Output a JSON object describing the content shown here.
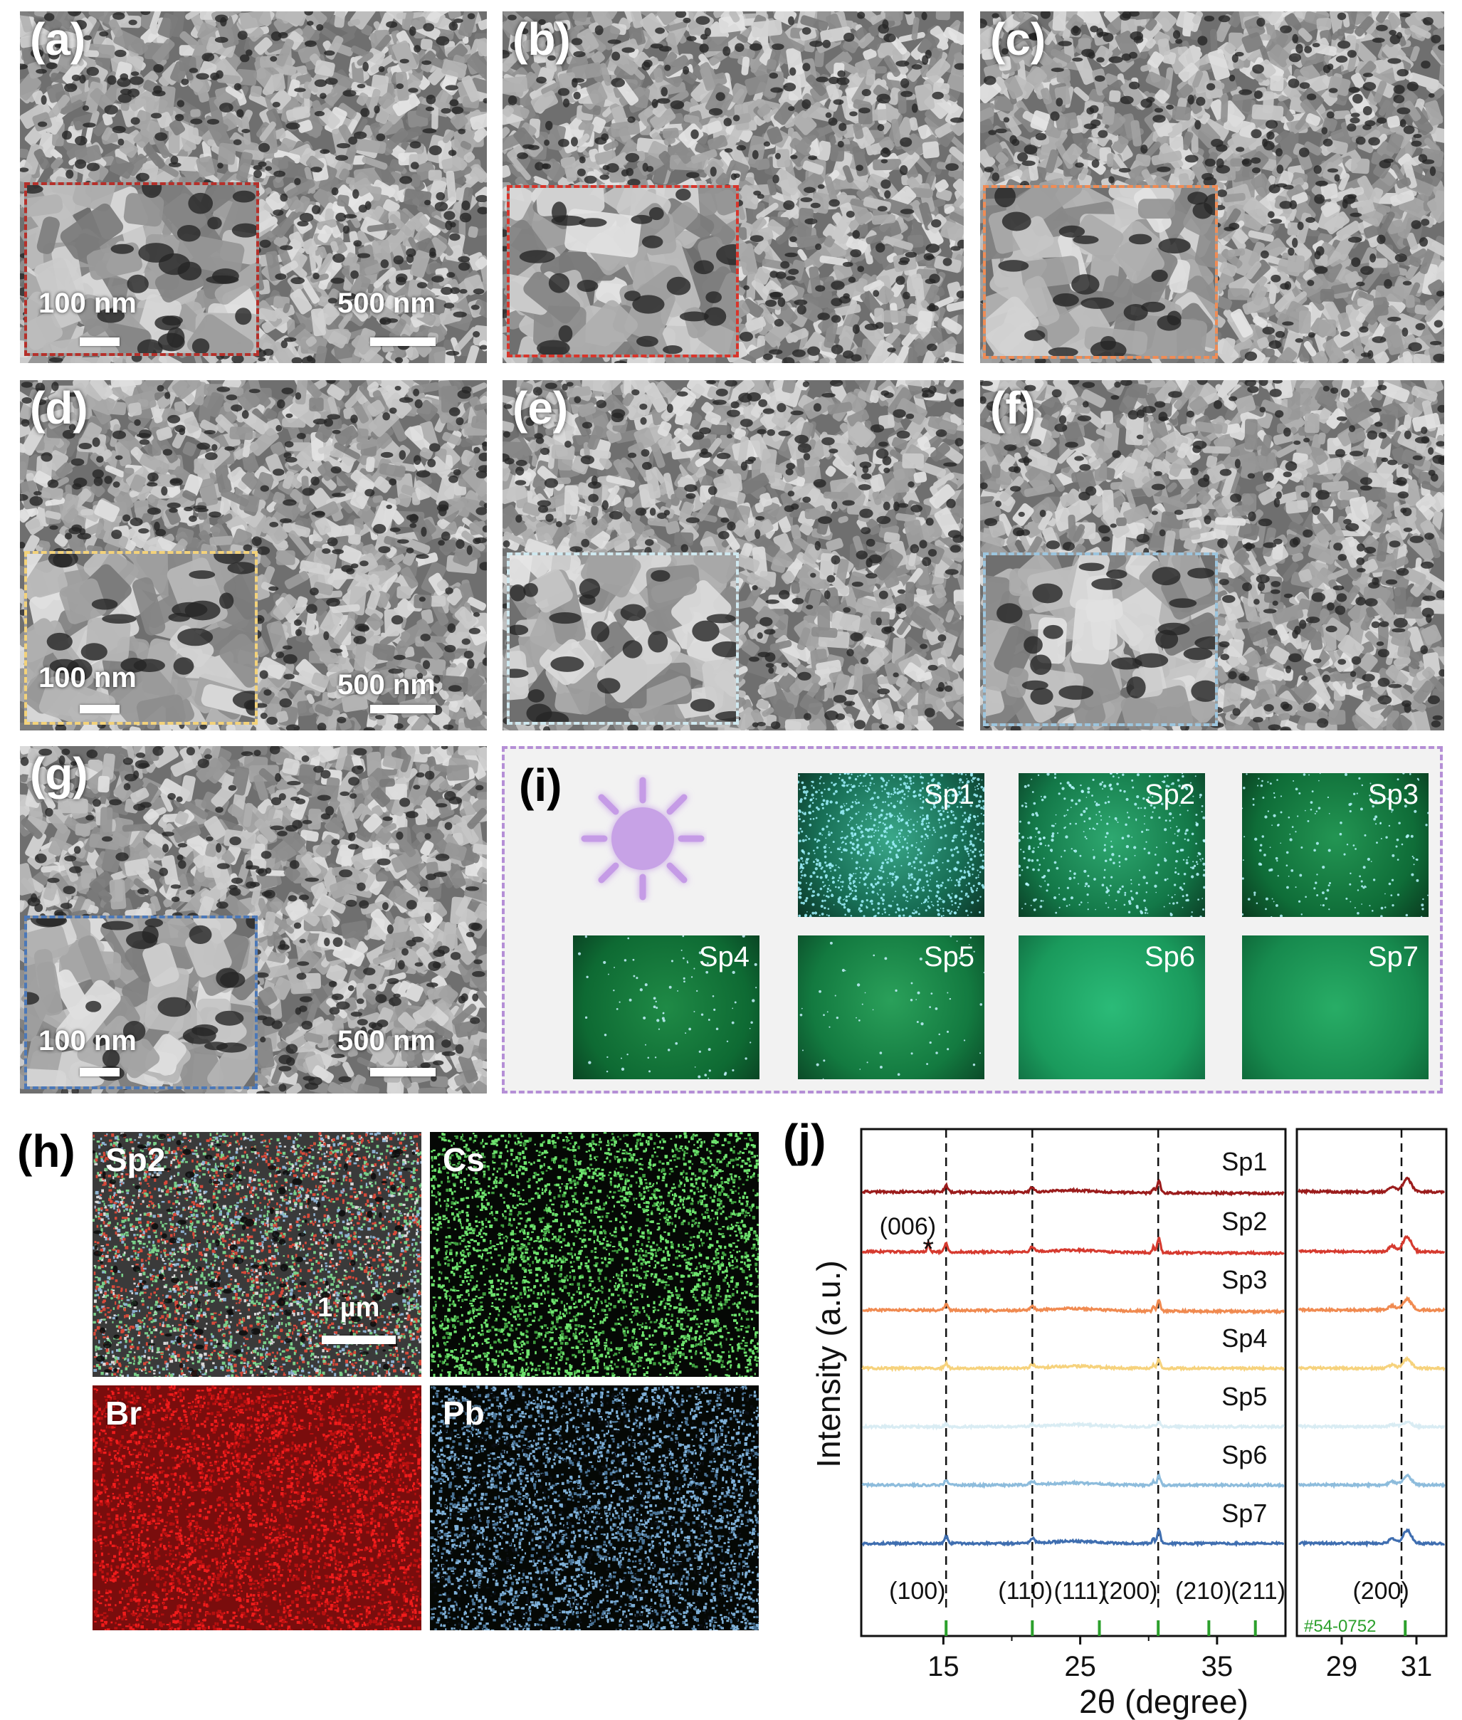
{
  "sem_panels": {
    "a": {
      "label": "(a)",
      "inset_scale": "100 nm",
      "main_scale": "500 nm",
      "inset_color": "#b5302a"
    },
    "b": {
      "label": "(b)",
      "inset_color": "#d8352b"
    },
    "c": {
      "label": "(c)",
      "inset_color": "#f08c55"
    },
    "d": {
      "label": "(d)",
      "inset_scale": "100 nm",
      "main_scale": "500 nm",
      "inset_color": "#f3d27a"
    },
    "e": {
      "label": "(e)",
      "inset_color": "#cfe8ef"
    },
    "f": {
      "label": "(f)",
      "inset_color": "#9cc5de"
    },
    "g": {
      "label": "(g)",
      "inset_scale": "100 nm",
      "main_scale": "500 nm",
      "inset_color": "#4b78b8"
    }
  },
  "panel_i": {
    "label": "(i)",
    "icon": "sun-icon",
    "samples": [
      "Sp1",
      "Sp2",
      "Sp3",
      "Sp4",
      "Sp5",
      "Sp6",
      "Sp7"
    ],
    "border_color": "#b58fd6"
  },
  "panel_h": {
    "label": "(h)",
    "maps": [
      {
        "label": "Sp2",
        "color": "mixed",
        "scale": "1 µm"
      },
      {
        "label": "Cs",
        "color": "#6ee36e"
      },
      {
        "label": "Br",
        "color": "#e01818"
      },
      {
        "label": "Pb",
        "color": "#7fb0d8"
      }
    ]
  },
  "chart_data": {
    "type": "line",
    "label": "(j)",
    "xlabel": "2θ (degree)",
    "ylabel": "Intensity (a.u.)",
    "main_xlim": [
      9,
      40
    ],
    "main_xticks": [
      15,
      25,
      35
    ],
    "zoom_xlim": [
      27.8,
      31.8
    ],
    "zoom_xticks": [
      29,
      31
    ],
    "dashed_lines_main": [
      15.2,
      21.5,
      30.7
    ],
    "dashed_lines_zoom": [
      30.6
    ],
    "series": [
      {
        "name": "Sp1",
        "color": "#9b1c1c"
      },
      {
        "name": "Sp2",
        "color": "#d63a2f"
      },
      {
        "name": "Sp3",
        "color": "#f08a50"
      },
      {
        "name": "Sp4",
        "color": "#f6d27c"
      },
      {
        "name": "Sp5",
        "color": "#d9ecf3"
      },
      {
        "name": "Sp6",
        "color": "#8dbcdc"
      },
      {
        "name": "Sp7",
        "color": "#3f6eb0"
      }
    ],
    "peak_labels_main": [
      "(100)",
      "(110)",
      "(111)",
      "(200)",
      "(210)",
      "(211)"
    ],
    "peak_label_zoom": "(200)",
    "annotation_006": "(006)",
    "annotation_star": "*",
    "reference_card": "#54-0752",
    "reference_ticks": [
      15.2,
      21.5,
      26.4,
      30.7,
      34.4,
      37.8
    ],
    "reference_color": "#2ca02c"
  }
}
